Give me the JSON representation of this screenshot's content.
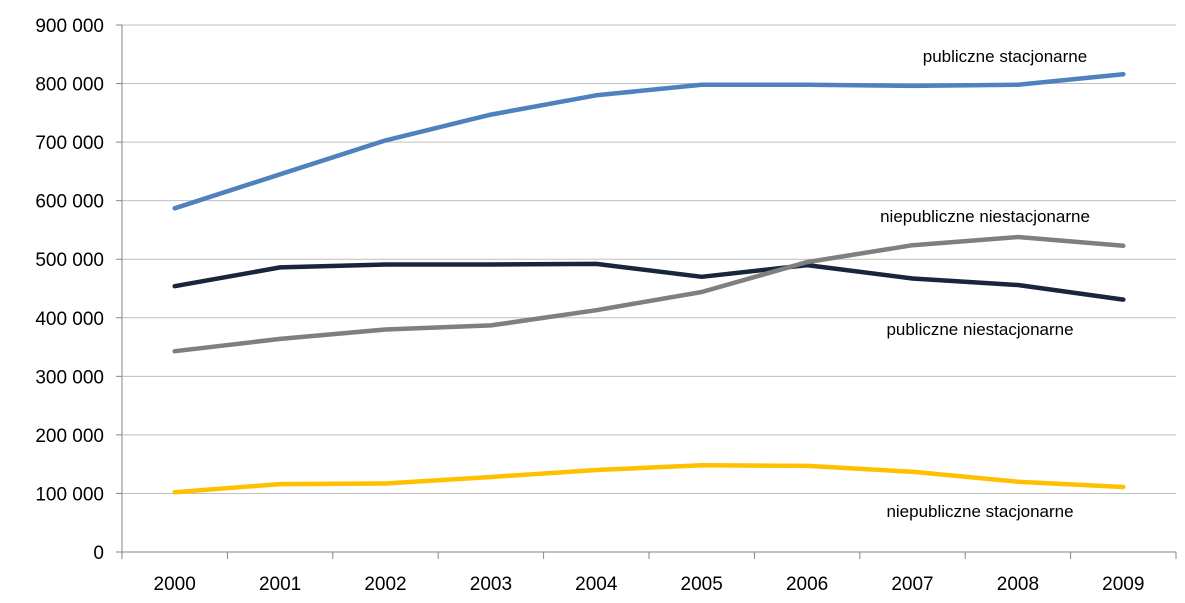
{
  "chart_data": {
    "type": "line",
    "title": "",
    "xlabel": "",
    "ylabel": "",
    "categories": [
      "2000",
      "2001",
      "2002",
      "2003",
      "2004",
      "2005",
      "2006",
      "2007",
      "2008",
      "2009"
    ],
    "ylim": [
      0,
      900000
    ],
    "yticks": [
      0,
      100000,
      200000,
      300000,
      400000,
      500000,
      600000,
      700000,
      800000,
      900000
    ],
    "ytick_labels": [
      "0",
      "100 000",
      "200 000",
      "300 000",
      "400 000",
      "500 000",
      "600 000",
      "700 000",
      "800 000",
      "900 000"
    ],
    "grid": true,
    "legend": "none (series labeled directly)",
    "series": [
      {
        "name": "publiczne stacjonarne",
        "color": "#4F81BD",
        "values": [
          587000,
          645000,
          703000,
          747000,
          780000,
          798000,
          798000,
          796000,
          798000,
          816000
        ]
      },
      {
        "name": "publiczne niestacjonarne",
        "color": "#17253D",
        "values": [
          454000,
          486000,
          491000,
          491000,
          492000,
          470000,
          490000,
          467000,
          456000,
          431000
        ]
      },
      {
        "name": "niepubliczne niestacjonarne",
        "color": "#7F7F7F",
        "values": [
          343000,
          364000,
          380000,
          387000,
          413000,
          444000,
          495000,
          524000,
          538000,
          523000
        ]
      },
      {
        "name": "niepubliczne stacjonarne",
        "color": "#FFC000",
        "values": [
          102000,
          116000,
          117000,
          128000,
          140000,
          148000,
          147000,
          137000,
          120000,
          111000
        ]
      }
    ]
  }
}
